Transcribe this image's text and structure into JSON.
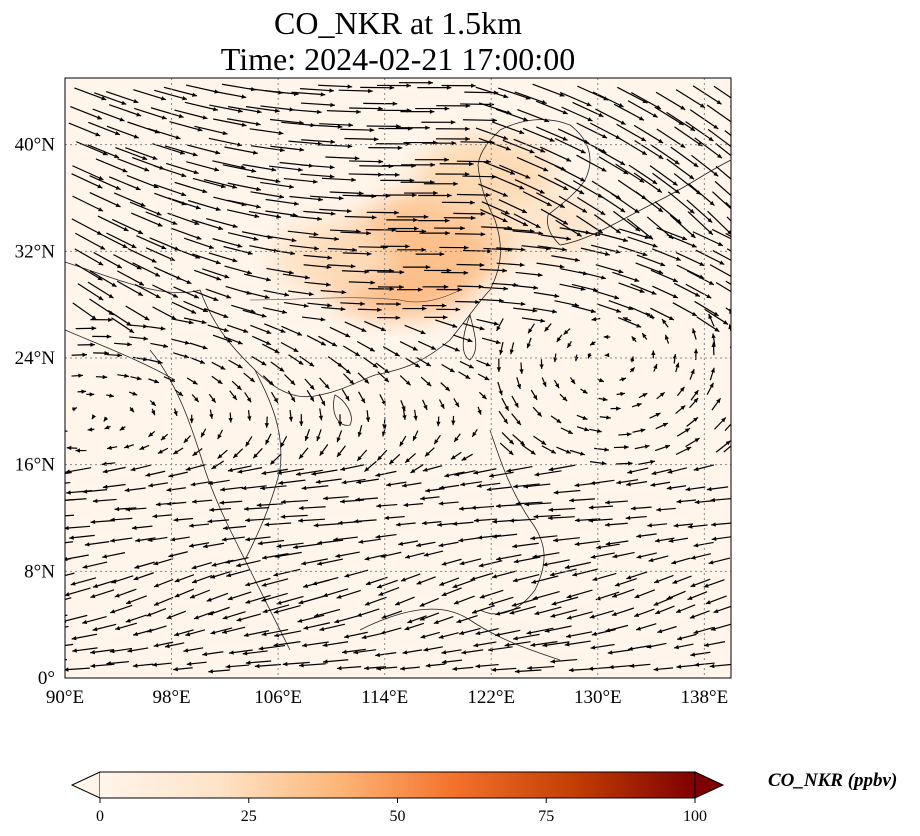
{
  "title": {
    "line1": "CO_NKR at 1.5km",
    "line2": "Time: 2024-02-21 17:00:00"
  },
  "map": {
    "type": "contour-fill with wind vectors",
    "variable": "CO_NKR",
    "level": "1.5km",
    "lon_range": [
      90,
      140
    ],
    "lat_range": [
      0,
      45
    ],
    "lon_ticks": [
      {
        "value": 90,
        "label": "90°E"
      },
      {
        "value": 98,
        "label": "98°E"
      },
      {
        "value": 106,
        "label": "106°E"
      },
      {
        "value": 114,
        "label": "114°E"
      },
      {
        "value": 122,
        "label": "122°E"
      },
      {
        "value": 130,
        "label": "130°E"
      },
      {
        "value": 138,
        "label": "138°E"
      }
    ],
    "lat_ticks": [
      {
        "value": 0,
        "label": "0°"
      },
      {
        "value": 8,
        "label": "8°N"
      },
      {
        "value": 16,
        "label": "16°N"
      },
      {
        "value": 24,
        "label": "24°N"
      },
      {
        "value": 32,
        "label": "32°N"
      },
      {
        "value": 40,
        "label": "40°N"
      }
    ],
    "gridlines": "dotted",
    "plume_regions": [
      {
        "lon": 115.0,
        "lat": 31.0,
        "value_ppbv": 30
      },
      {
        "lon": 118.0,
        "lat": 33.0,
        "value_ppbv": 25
      },
      {
        "lon": 121.5,
        "lat": 37.5,
        "value_ppbv": 18
      },
      {
        "lon": 110.0,
        "lat": 31.5,
        "value_ppbv": 12
      },
      {
        "lon": 126.0,
        "lat": 34.0,
        "value_ppbv": 10
      }
    ]
  },
  "colorbar": {
    "label": "CO_NKR (ppbv)",
    "min": 0,
    "max": 100,
    "extend": "both",
    "colormap": [
      "#fff5eb",
      "#fdd2a5",
      "#fd9243",
      "#df4f0b",
      "#a33603",
      "#7f0000"
    ],
    "ticks": [
      {
        "value": 0,
        "label": "0"
      },
      {
        "value": 25,
        "label": "25"
      },
      {
        "value": 50,
        "label": "50"
      },
      {
        "value": 75,
        "label": "75"
      },
      {
        "value": 100,
        "label": "100"
      }
    ]
  }
}
